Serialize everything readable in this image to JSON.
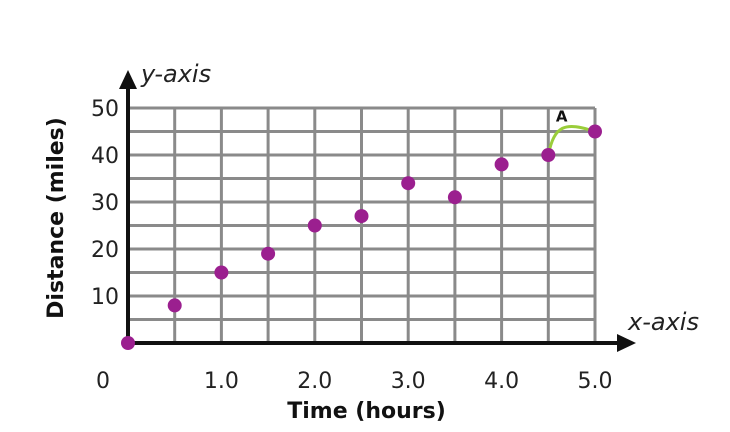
{
  "chart_data": {
    "type": "scatter",
    "x_axis_name": "x-axis",
    "y_axis_name": "y-axis",
    "xlabel": "Time (hours)",
    "ylabel": "Distance (miles)",
    "origin_label": "0",
    "xlim": [
      0,
      5
    ],
    "ylim": [
      0,
      50
    ],
    "x_ticks": [
      {
        "value": 1,
        "label": "1.0"
      },
      {
        "value": 2,
        "label": "2.0"
      },
      {
        "value": 3,
        "label": "3.0"
      },
      {
        "value": 4,
        "label": "4.0"
      },
      {
        "value": 5,
        "label": "5.0"
      }
    ],
    "y_ticks": [
      {
        "value": 10,
        "label": "10"
      },
      {
        "value": 20,
        "label": "20"
      },
      {
        "value": 30,
        "label": "30"
      },
      {
        "value": 40,
        "label": "40"
      },
      {
        "value": 50,
        "label": "50"
      }
    ],
    "grid": true,
    "grid_x_step": 0.5,
    "grid_y_step": 5,
    "points": [
      {
        "x": 0,
        "y": 0
      },
      {
        "x": 0.5,
        "y": 8
      },
      {
        "x": 1.0,
        "y": 15
      },
      {
        "x": 1.5,
        "y": 19
      },
      {
        "x": 2.0,
        "y": 25
      },
      {
        "x": 2.5,
        "y": 27
      },
      {
        "x": 3.0,
        "y": 34
      },
      {
        "x": 3.5,
        "y": 31
      },
      {
        "x": 4.0,
        "y": 38
      },
      {
        "x": 4.5,
        "y": 40
      },
      {
        "x": 5.0,
        "y": 45
      }
    ],
    "annotation": {
      "label": "A",
      "from_point_index": 9,
      "to_point_index": 10
    },
    "colors": {
      "point": "#9b1f8f",
      "grid": "#8a8a8a",
      "axis": "#111111",
      "annotation": "#9acd3a"
    }
  }
}
